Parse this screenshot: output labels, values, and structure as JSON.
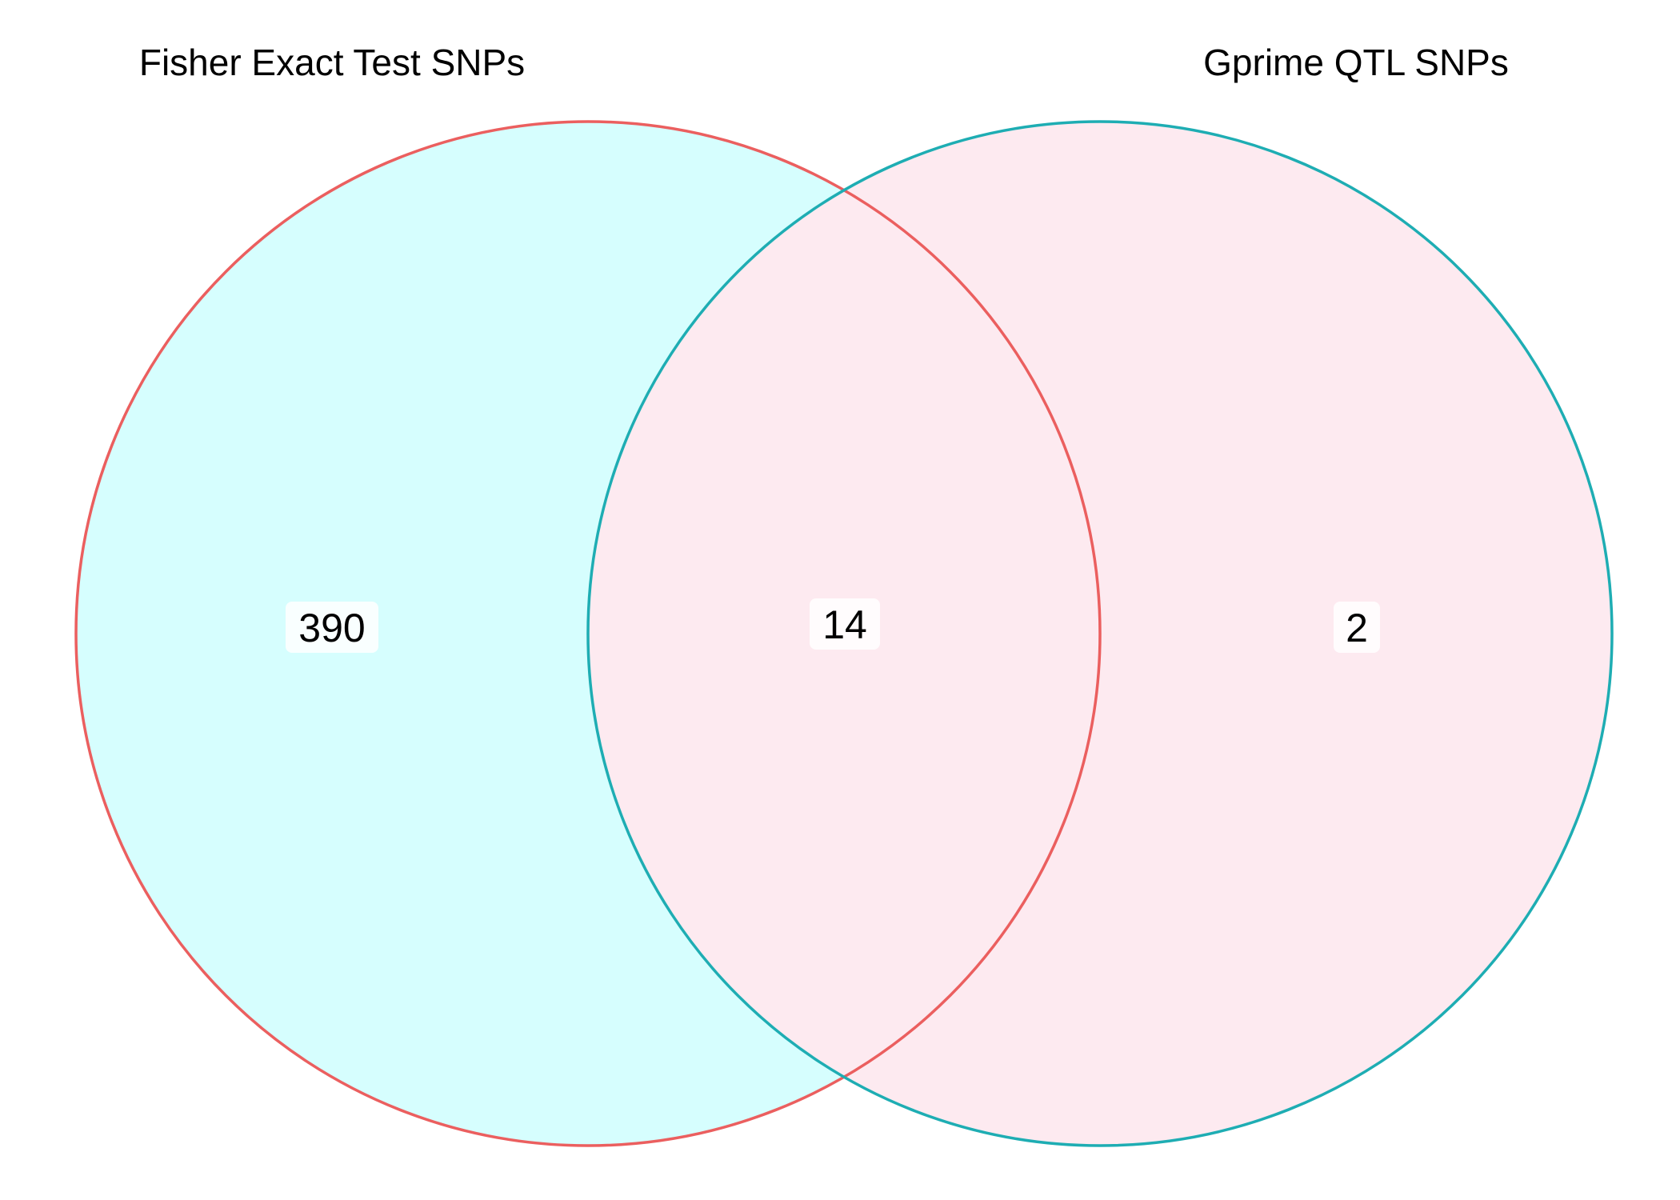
{
  "diagram": {
    "type": "venn",
    "sets": [
      {
        "key": "A",
        "name": "Fisher Exact Test SNPs",
        "outline_color": "#EB5F5F",
        "fill_color": "#D6FEFE"
      },
      {
        "key": "B",
        "name": "Gprime QTL SNPs",
        "outline_color": "#1EADB3",
        "fill_color": "#FDEAF0"
      }
    ],
    "regions": [
      {
        "sets": [
          "A"
        ],
        "label": "Fisher Exact Test SNPs only",
        "count": "390"
      },
      {
        "sets": [
          "A",
          "B"
        ],
        "label": "Fisher Exact Test SNPs and Gprime QTL SNPs",
        "count": "14"
      },
      {
        "sets": [
          "B"
        ],
        "label": "Gprime QTL SNPs only",
        "count": "2"
      }
    ]
  }
}
